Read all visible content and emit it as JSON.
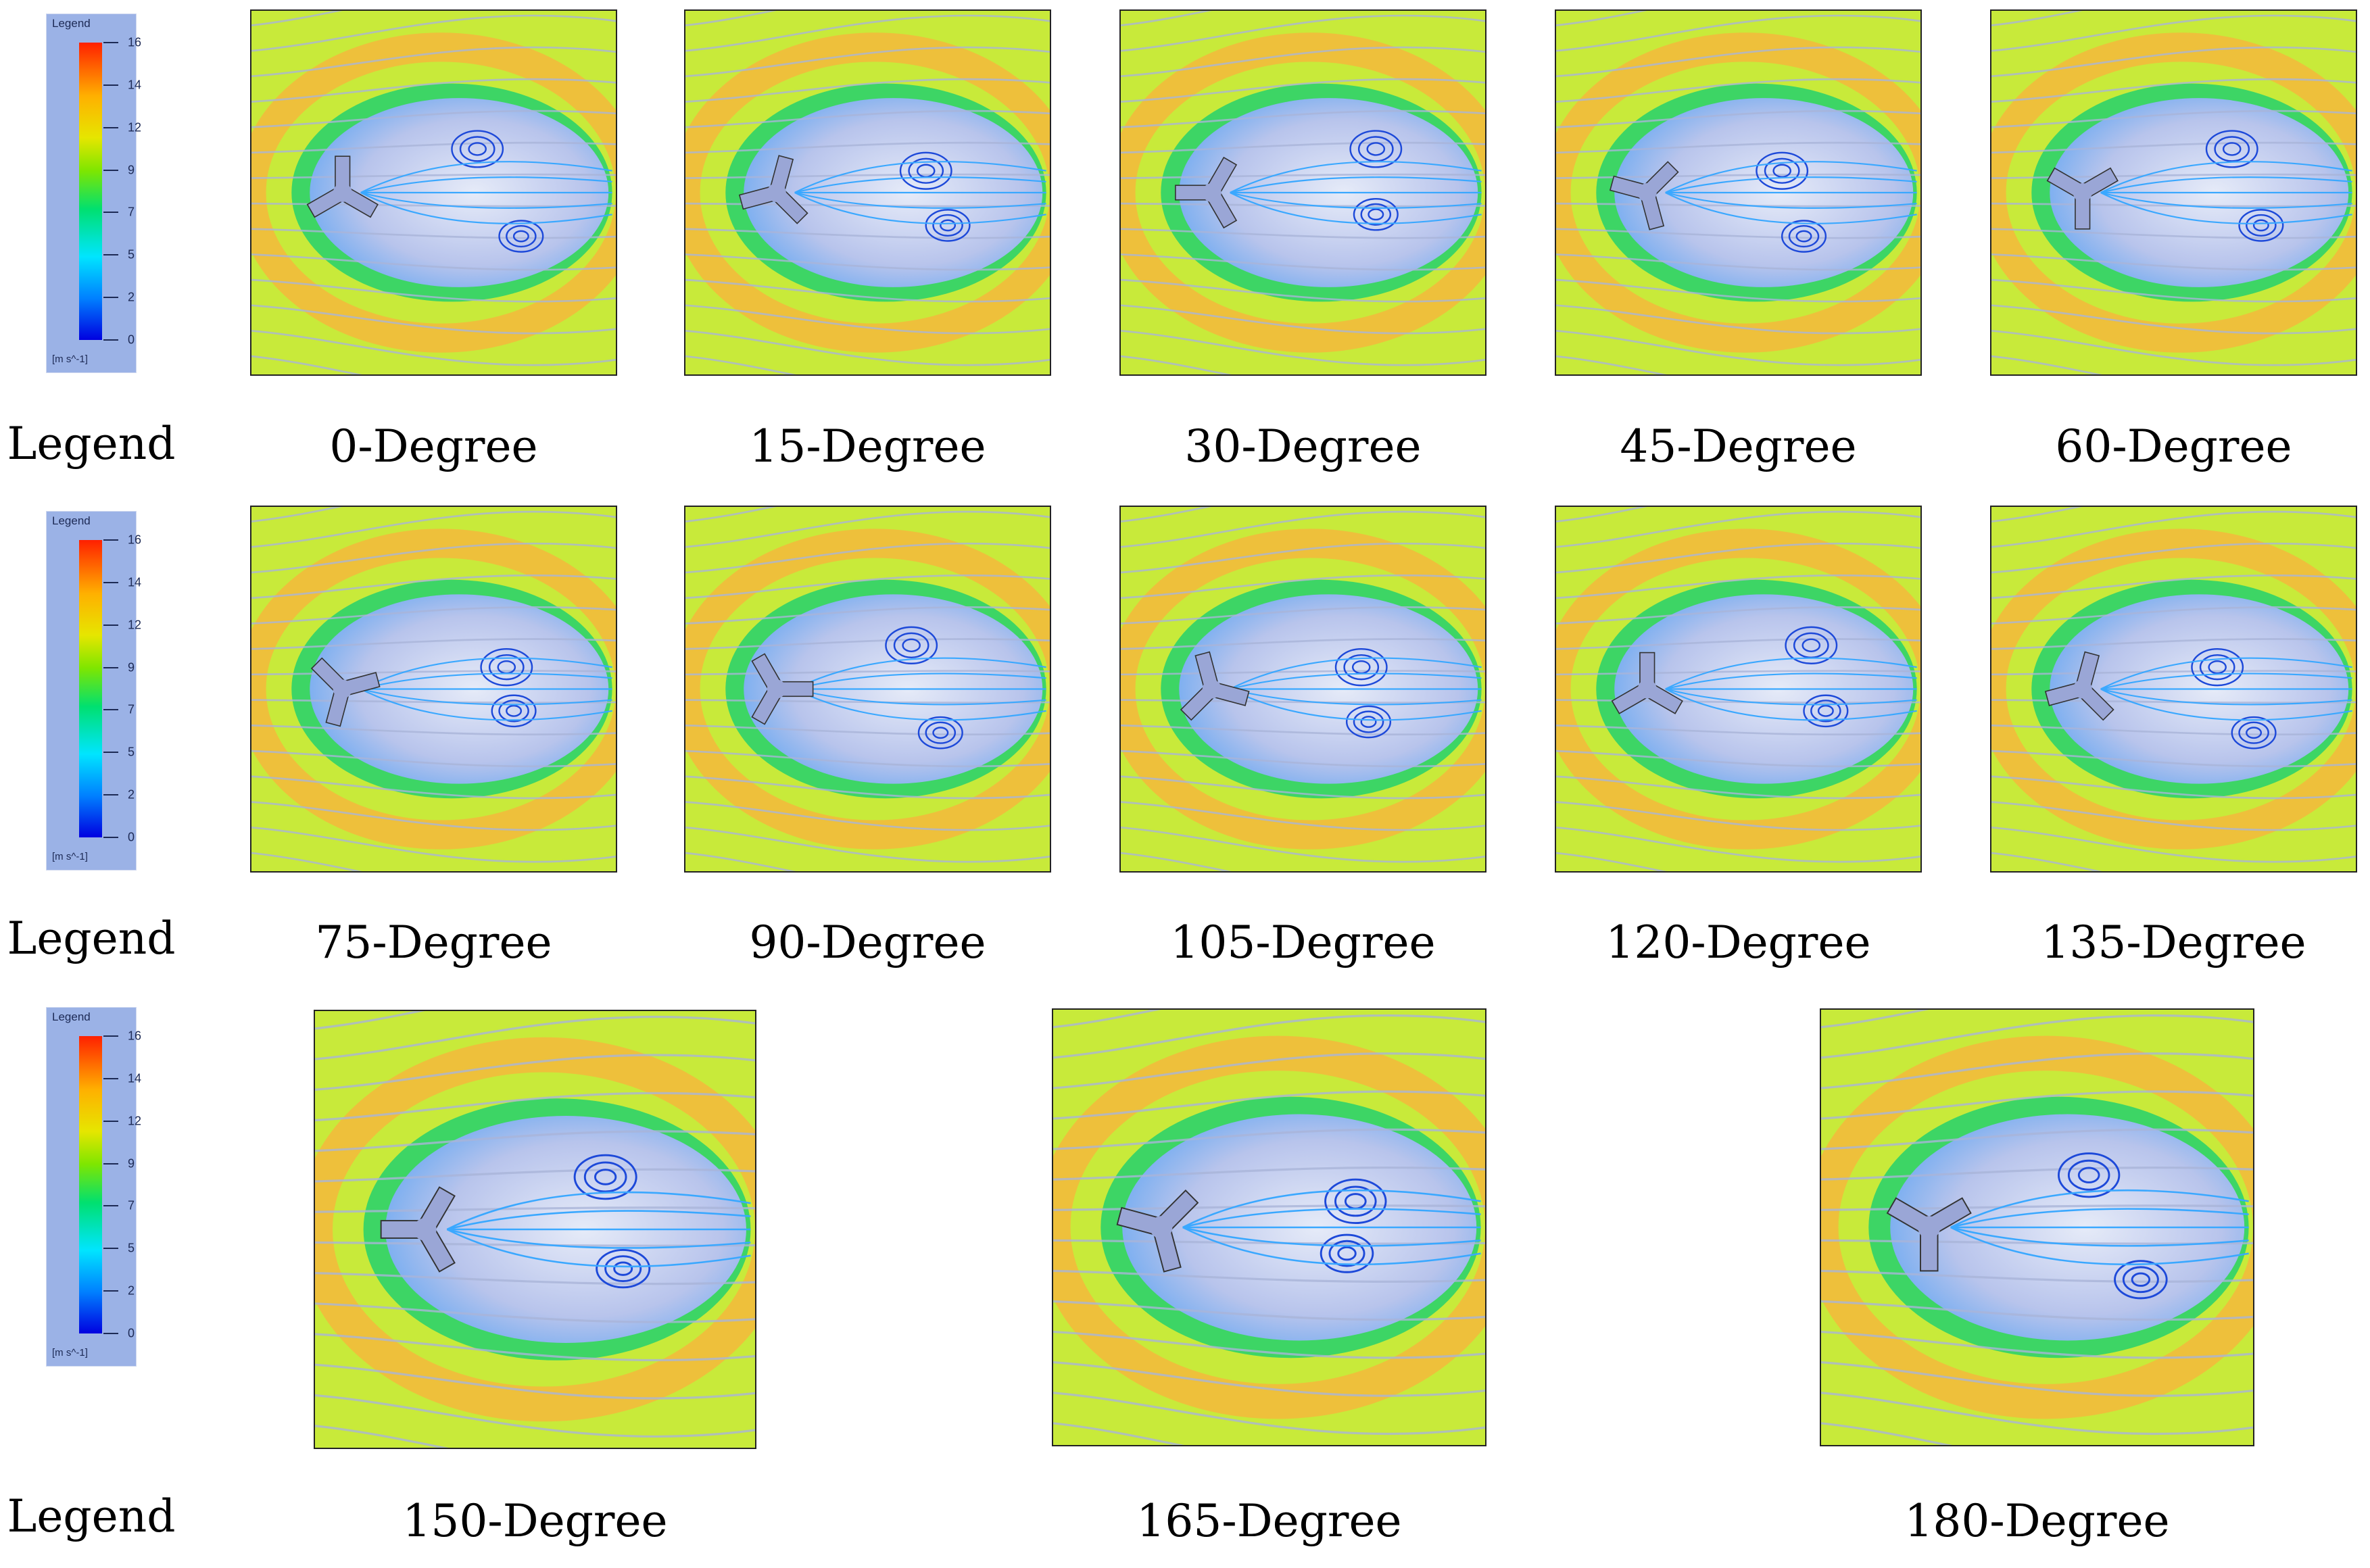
{
  "legend": {
    "title": "Legend",
    "ticks": [
      "16",
      "14",
      "12",
      "9",
      "7",
      "5",
      "2",
      "0"
    ],
    "unit": "[m s^-1]"
  },
  "labels": {
    "legend_row1": "Legend",
    "legend_row2": "Legend",
    "legend_row3": "Legend"
  },
  "panels": [
    {
      "caption": "0-Degree",
      "angle": 0
    },
    {
      "caption": "15-Degree",
      "angle": 15
    },
    {
      "caption": "30-Degree",
      "angle": 30
    },
    {
      "caption": "45-Degree",
      "angle": 45
    },
    {
      "caption": "60-Degree",
      "angle": 60
    },
    {
      "caption": "75-Degree",
      "angle": 75
    },
    {
      "caption": "90-Degree",
      "angle": 90
    },
    {
      "caption": "105-Degree",
      "angle": 105
    },
    {
      "caption": "120-Degree",
      "angle": 120
    },
    {
      "caption": "135-Degree",
      "angle": 135
    },
    {
      "caption": "150-Degree",
      "angle": 150
    },
    {
      "caption": "165-Degree",
      "angle": 165
    },
    {
      "caption": "180-Degree",
      "angle": 180
    }
  ],
  "colors": {
    "free_stream": "#c8ea3a",
    "shear_layer": "#f5b93c",
    "wake_edge": "#2ed36a",
    "wake_core": "#b8c4ec",
    "streamline_outer": "#a9b4d8",
    "streamline_inner": "#1d49d9",
    "body": "#9aa6d6"
  }
}
